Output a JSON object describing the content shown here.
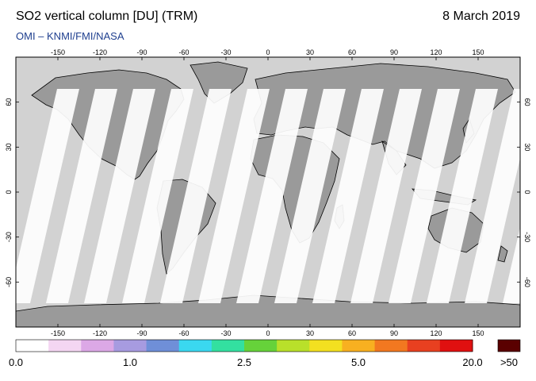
{
  "header": {
    "title": "SO2 vertical column [DU] (TRM)",
    "date": "8 March 2019",
    "credit": "OMI  –  KNMI/FMI/NASA"
  },
  "axes": {
    "lon_ticks": [
      "-150",
      "-120",
      "-90",
      "-60",
      "-30",
      "0",
      "30",
      "60",
      "90",
      "120",
      "150"
    ],
    "lat_ticks": [
      "60",
      "30",
      "0",
      "-30",
      "-60"
    ]
  },
  "colorbar": {
    "labels": [
      "0.0",
      "1.0",
      "2.5",
      "5.0",
      "20.0"
    ],
    "overflow_label": ">50",
    "overflow_color": "#5a0000",
    "colors": [
      "#ffffff",
      "#f4d6f2",
      "#dca8e6",
      "#a79be0",
      "#6f8fd8",
      "#3ad8f0",
      "#33e0a0",
      "#66d23a",
      "#b9e02a",
      "#f3e020",
      "#f8b020",
      "#f27820",
      "#e84020",
      "#e01010"
    ]
  },
  "map": {
    "land_color": "#9a9a9a",
    "ocean_color": "#d2d2d2",
    "swath_color": "#ffffff"
  }
}
